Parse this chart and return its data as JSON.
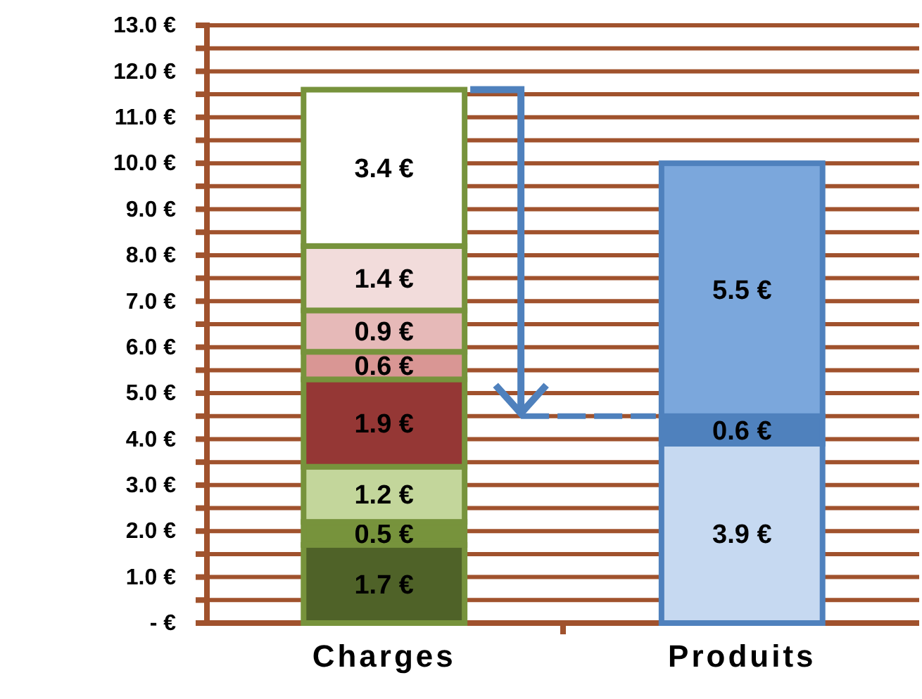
{
  "chart_data": {
    "type": "bar",
    "stacked": true,
    "categories": [
      "Charges",
      "Produits"
    ],
    "series": [
      {
        "colors": [
          "#4f6228",
          "#c6d9f1"
        ],
        "values": [
          1.7,
          3.9
        ],
        "value_labels": [
          "1.7 €",
          "3.9 €"
        ]
      },
      {
        "colors": [
          "#77933c",
          "#4f81bd"
        ],
        "values": [
          0.5,
          0.6
        ],
        "value_labels": [
          "0.5 €",
          "0.6 €"
        ]
      },
      {
        "colors": [
          "#c3d69b",
          "#7ba7dc"
        ],
        "values": [
          1.2,
          5.5
        ],
        "value_labels": [
          "1.2 €",
          "5.5 €"
        ]
      },
      {
        "colors": [
          "#953735",
          null
        ],
        "values": [
          1.9,
          null
        ],
        "value_labels": [
          "1.9 €",
          null
        ]
      },
      {
        "colors": [
          "#d99694",
          null
        ],
        "values": [
          0.6,
          null
        ],
        "value_labels": [
          "0.6 €",
          null
        ]
      },
      {
        "colors": [
          "#e6b9b8",
          null
        ],
        "values": [
          0.9,
          null
        ],
        "value_labels": [
          "0.9 €",
          null
        ]
      },
      {
        "colors": [
          "#f2dcdb",
          null
        ],
        "values": [
          1.4,
          null
        ],
        "value_labels": [
          "1.4 €",
          null
        ]
      },
      {
        "colors": [
          "#ffffff",
          null
        ],
        "values": [
          3.4,
          null
        ],
        "value_labels": [
          "3.4 €",
          null
        ]
      }
    ],
    "ylim": [
      0,
      13
    ],
    "yticks": [
      {
        "value": 0,
        "label": "- €"
      },
      {
        "value": 0.5,
        "label": null
      },
      {
        "value": 1,
        "label": "1.0 €"
      },
      {
        "value": 1.5,
        "label": null
      },
      {
        "value": 2,
        "label": "2.0 €"
      },
      {
        "value": 2.5,
        "label": null
      },
      {
        "value": 3,
        "label": "3.0 €"
      },
      {
        "value": 3.5,
        "label": null
      },
      {
        "value": 4,
        "label": "4.0 €"
      },
      {
        "value": 4.5,
        "label": null
      },
      {
        "value": 5,
        "label": "5.0 €"
      },
      {
        "value": 5.5,
        "label": null
      },
      {
        "value": 6,
        "label": "6.0 €"
      },
      {
        "value": 6.5,
        "label": null
      },
      {
        "value": 7,
        "label": "7.0 €"
      },
      {
        "value": 7.5,
        "label": null
      },
      {
        "value": 8,
        "label": "8.0 €"
      },
      {
        "value": 8.5,
        "label": null
      },
      {
        "value": 9,
        "label": "9.0 €"
      },
      {
        "value": 9.5,
        "label": null
      },
      {
        "value": 10,
        "label": "10.0 €"
      },
      {
        "value": 10.5,
        "label": null
      },
      {
        "value": 11,
        "label": "11.0 €"
      },
      {
        "value": 11.5,
        "label": null
      },
      {
        "value": 12,
        "label": "12.0 €"
      },
      {
        "value": 12.5,
        "label": null
      },
      {
        "value": 13,
        "label": "13.0 €"
      }
    ],
    "grid": true
  }
}
